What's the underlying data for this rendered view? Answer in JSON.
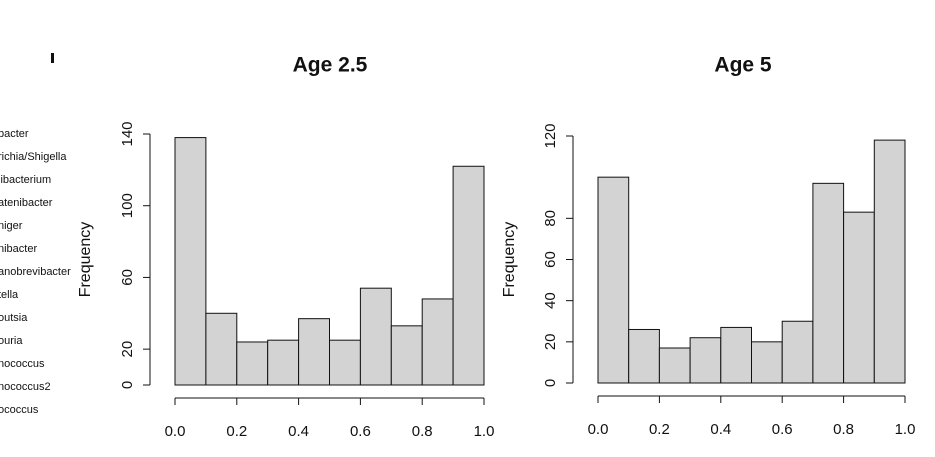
{
  "side_labels": [
    "bacter",
    "richia/Shigella",
    "libacterium",
    "atenibacter",
    "niger",
    "nibacter",
    "anobrevibacter",
    "tella",
    "outsia",
    "ouria",
    "nococcus",
    "nococcus2",
    "ococcus"
  ],
  "chart_data": [
    {
      "type": "histogram",
      "title": "Age 2.5",
      "ylabel": "Frequency",
      "color": "#d3d3d3",
      "bins": [
        0,
        0.1,
        0.2,
        0.3,
        0.4,
        0.5,
        0.6,
        0.7,
        0.8,
        0.9,
        1.0
      ],
      "values": [
        138,
        40,
        24,
        25,
        37,
        25,
        54,
        33,
        48,
        122
      ],
      "xlim": [
        0,
        1
      ],
      "xticks": [
        {
          "value": 0,
          "label": "0.0"
        },
        0.2,
        0.4,
        0.6,
        0.8,
        {
          "value": 1,
          "label": "1.0"
        }
      ],
      "ylim": [
        0,
        140
      ],
      "yticks": [
        0,
        20,
        60,
        100,
        140
      ]
    },
    {
      "type": "histogram",
      "title": "Age 5",
      "ylabel": "Frequency",
      "color": "#d3d3d3",
      "bins": [
        0,
        0.1,
        0.2,
        0.3,
        0.4,
        0.5,
        0.6,
        0.7,
        0.8,
        0.9,
        1.0
      ],
      "values": [
        100,
        26,
        17,
        22,
        27,
        20,
        30,
        97,
        83,
        118
      ],
      "xlim": [
        0,
        1
      ],
      "xticks": [
        {
          "value": 0,
          "label": "0.0"
        },
        0.2,
        0.4,
        0.6,
        0.8,
        {
          "value": 1,
          "label": "1.0"
        }
      ],
      "ylim": [
        0,
        120
      ],
      "yticks": [
        0,
        20,
        40,
        60,
        80,
        120
      ]
    }
  ]
}
